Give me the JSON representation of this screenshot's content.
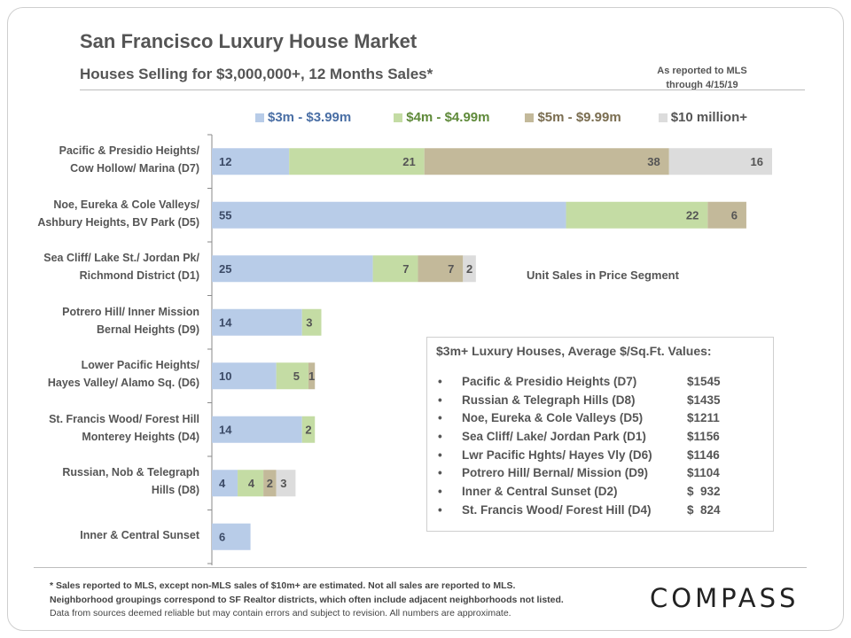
{
  "header": {
    "title": "San Francisco Luxury House Market",
    "subtitle": "Houses Selling for $3,000,000+, 12 Months Sales*",
    "source_line1": "As reported to MLS",
    "source_line2": "through 4/15/19"
  },
  "colors": {
    "seg1": "#b8cce8",
    "seg2": "#c4dca4",
    "seg3": "#c3b99a",
    "seg4": "#dcdcdc",
    "legend1": "#4a6fa5",
    "legend2": "#5f8a3a",
    "legend3": "#7a6d50",
    "legend4": "#555555"
  },
  "chart_data": {
    "type": "bar",
    "orientation": "horizontal",
    "stacked": true,
    "title": "Houses Selling for $3,000,000+, 12 Months Sales*",
    "annotation": "Unit Sales in Price Segment",
    "legend_position": "top",
    "categories": [
      [
        "Pacific & Presidio Heights/",
        "Cow Hollow/ Marina (D7)"
      ],
      [
        "Noe, Eureka & Cole Valleys/",
        "Ashbury Heights, BV Park (D5)"
      ],
      [
        "Sea Cliff/ Lake St./ Jordan Pk/",
        "Richmond District (D1)"
      ],
      [
        "Potrero Hill/ Inner Mission",
        "Bernal Heights (D9)"
      ],
      [
        "Lower Pacific Heights/",
        "Hayes Valley/ Alamo Sq. (D6)"
      ],
      [
        "St. Francis Wood/ Forest Hill",
        "Monterey Heights (D4)"
      ],
      [
        "Russian, Nob & Telegraph",
        "Hills (D8)"
      ],
      [
        "Inner & Central Sunset"
      ]
    ],
    "series": [
      {
        "name": "$3m - $3.99m",
        "values": [
          12,
          55,
          25,
          14,
          10,
          14,
          4,
          6
        ]
      },
      {
        "name": "$4m - $4.99m",
        "values": [
          21,
          22,
          7,
          3,
          5,
          2,
          4,
          0
        ]
      },
      {
        "name": "$5m - $9.99m",
        "values": [
          38,
          6,
          7,
          0,
          1,
          0,
          2,
          0
        ]
      },
      {
        "name": "$10 million+",
        "values": [
          16,
          0,
          2,
          0,
          0,
          0,
          3,
          0
        ]
      }
    ],
    "xlim": [
      0,
      87
    ]
  },
  "info_box": {
    "title": "$3m+ Luxury Houses, Average $/Sq.Ft. Values:",
    "bullet": "•",
    "items": [
      {
        "name": "Pacific & Presidio Heights (D7)",
        "value": "$1545"
      },
      {
        "name": "Russian & Telegraph Hills (D8)",
        "value": "$1435"
      },
      {
        "name": "Noe, Eureka & Cole Valleys (D5)",
        "value": "$1211"
      },
      {
        "name": "Sea Cliff/ Lake/ Jordan Park (D1)",
        "value": "$1156"
      },
      {
        "name": "Lwr Pacific Hghts/ Hayes Vly (D6)",
        "value": "$1146"
      },
      {
        "name": "Potrero Hill/ Bernal/ Mission (D9)",
        "value": "$1104"
      },
      {
        "name": "Inner & Central Sunset (D2)",
        "value": "$  932"
      },
      {
        "name": "St. Francis Wood/ Forest Hill (D4)",
        "value": "$  824"
      }
    ]
  },
  "footer": {
    "line1": "* Sales reported to MLS, except non-MLS sales of $10m+ are estimated. Not all sales are reported to MLS.",
    "line2": "Neighborhood groupings correspond to SF Realtor districts, which often include adjacent neighborhoods not listed.",
    "line3": "Data from sources deemed reliable but may contain errors and subject to revision. All numbers are approximate.",
    "logo": "COMPASS"
  }
}
